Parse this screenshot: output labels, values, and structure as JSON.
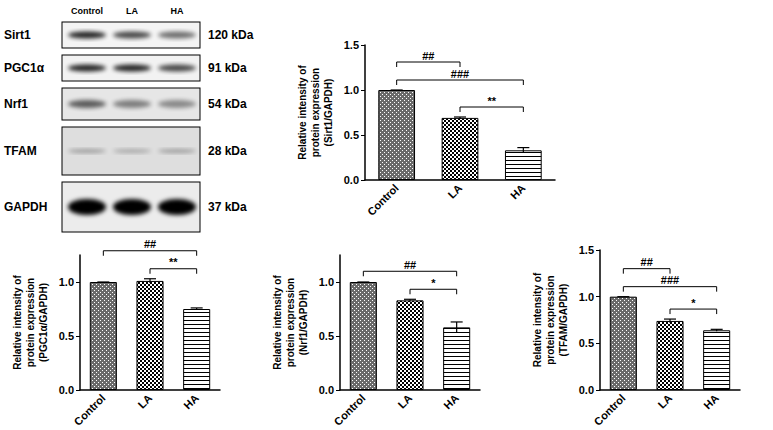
{
  "blot": {
    "lanes": [
      "Control",
      "LA",
      "HA"
    ],
    "rows": [
      {
        "label": "Sirt1",
        "size": "120 kDa"
      },
      {
        "label": "PGC1α",
        "size": "91 kDa"
      },
      {
        "label": "Nrf1",
        "size": "54 kDa"
      },
      {
        "label": "TFAM",
        "size": "28 kDa"
      },
      {
        "label": "GAPDH",
        "size": "37 kDa"
      }
    ]
  },
  "chart_data": [
    {
      "type": "bar",
      "ylabel": "Relative intensity of\nprotein expression\n(Sirt1/GAPDH)",
      "categories": [
        "Control",
        "LA",
        "HA"
      ],
      "values": [
        1.0,
        0.69,
        0.33
      ],
      "errors": [
        0,
        0.01,
        0.03
      ],
      "color": "#000000",
      "ylim": [
        0,
        1.5
      ],
      "yticks": [
        {
          "value": 0,
          "label": "0.0"
        },
        {
          "value": 0.5,
          "label": "0.5"
        },
        {
          "value": 1,
          "label": "1.0"
        },
        {
          "value": 1.5,
          "label": "1.5"
        }
      ],
      "grid": false,
      "annotations": [
        {
          "from": "LA",
          "to": "HA",
          "text": "**"
        },
        {
          "from": "Control",
          "to": "HA",
          "text": "###"
        },
        {
          "from": "Control",
          "to": "LA",
          "text": "##"
        }
      ]
    },
    {
      "type": "bar",
      "ylabel": "Relative intensity of\nprotein expression\n(PGC1α/GAPDH)",
      "categories": [
        "Control",
        "LA",
        "HA"
      ],
      "values": [
        1.0,
        1.01,
        0.75
      ],
      "errors": [
        0,
        0.02,
        0.01
      ],
      "color": "#000000",
      "ylim": [
        0,
        1.25
      ],
      "yticks": [
        {
          "value": 0,
          "label": "0.0"
        },
        {
          "value": 0.5,
          "label": "0.5"
        },
        {
          "value": 1,
          "label": "1.0"
        }
      ],
      "grid": false,
      "annotations": [
        {
          "from": "LA",
          "to": "HA",
          "text": "**"
        },
        {
          "from": "Control",
          "to": "HA",
          "text": "##"
        }
      ]
    },
    {
      "type": "bar",
      "ylabel": "Relative intensity of\nprotein expression\n(Nrf1/GAPDH)",
      "categories": [
        "Control",
        "LA",
        "HA"
      ],
      "values": [
        1.0,
        0.83,
        0.58
      ],
      "errors": [
        0,
        0.01,
        0.05
      ],
      "color": "#000000",
      "ylim": [
        0,
        1.25
      ],
      "yticks": [
        {
          "value": 0,
          "label": "0.0"
        },
        {
          "value": 0.5,
          "label": "0.5"
        },
        {
          "value": 1,
          "label": "1.0"
        }
      ],
      "grid": false,
      "annotations": [
        {
          "from": "LA",
          "to": "HA",
          "text": "*"
        },
        {
          "from": "Control",
          "to": "HA",
          "text": "##"
        }
      ]
    },
    {
      "type": "bar",
      "ylabel": "Relative intensity of\nprotein expression\n(TFAM/GAPDH)",
      "categories": [
        "Control",
        "LA",
        "HA"
      ],
      "values": [
        1.0,
        0.74,
        0.64
      ],
      "errors": [
        0,
        0.02,
        0.01
      ],
      "color": "#000000",
      "ylim": [
        0,
        1.5
      ],
      "yticks": [
        {
          "value": 0,
          "label": "0.0"
        },
        {
          "value": 0.5,
          "label": "0.5"
        },
        {
          "value": 1,
          "label": "1.0"
        },
        {
          "value": 1.5,
          "label": "1.5"
        }
      ],
      "grid": false,
      "annotations": [
        {
          "from": "LA",
          "to": "HA",
          "text": "*"
        },
        {
          "from": "Control",
          "to": "HA",
          "text": "###"
        },
        {
          "from": "Control",
          "to": "LA",
          "text": "##"
        }
      ]
    }
  ]
}
